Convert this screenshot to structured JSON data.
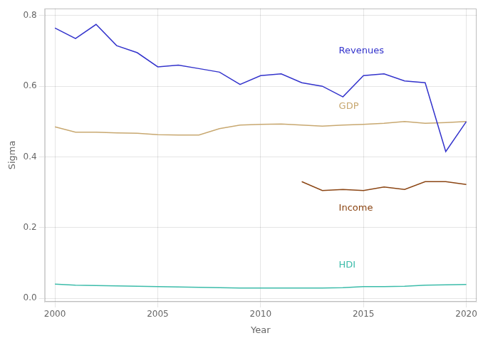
{
  "chart_data": {
    "type": "line",
    "xlabel": "Year",
    "ylabel": "Sigma",
    "xlim": [
      1999.5,
      2020.5
    ],
    "ylim": [
      -0.01,
      0.82
    ],
    "xticks": [
      2000,
      2005,
      2010,
      2015,
      2020
    ],
    "yticks": [
      {
        "value": 0.0,
        "label": "0.0"
      },
      0.2,
      0.4,
      0.6,
      0.8
    ],
    "grid": true,
    "series": [
      {
        "name": "Revenues",
        "color": "#3333cc",
        "x": [
          2000,
          2001,
          2002,
          2003,
          2004,
          2005,
          2006,
          2007,
          2008,
          2009,
          2010,
          2011,
          2012,
          2013,
          2014,
          2015,
          2016,
          2017,
          2018,
          2019,
          2020
        ],
        "values": [
          0.765,
          0.735,
          0.775,
          0.715,
          0.695,
          0.655,
          0.66,
          0.65,
          0.64,
          0.605,
          0.63,
          0.635,
          0.61,
          0.6,
          0.57,
          0.63,
          0.635,
          0.615,
          0.61,
          0.415,
          0.5
        ]
      },
      {
        "name": "GDP",
        "color": "#c8a870",
        "x": [
          2000,
          2001,
          2002,
          2003,
          2004,
          2005,
          2006,
          2007,
          2008,
          2009,
          2010,
          2011,
          2012,
          2013,
          2014,
          2015,
          2016,
          2017,
          2018,
          2019,
          2020
        ],
        "values": [
          0.485,
          0.47,
          0.47,
          0.468,
          0.467,
          0.463,
          0.462,
          0.462,
          0.48,
          0.49,
          0.492,
          0.493,
          0.49,
          0.487,
          0.49,
          0.492,
          0.495,
          0.5,
          0.495,
          0.497,
          0.5
        ]
      },
      {
        "name": "Income",
        "color": "#8B4513",
        "x": [
          2012,
          2013,
          2014,
          2015,
          2016,
          2017,
          2018,
          2019,
          2020
        ],
        "values": [
          0.33,
          0.305,
          0.308,
          0.305,
          0.315,
          0.308,
          0.33,
          0.33,
          0.322
        ]
      },
      {
        "name": "HDI",
        "color": "#3cbcaa",
        "x": [
          2000,
          2001,
          2002,
          2003,
          2004,
          2005,
          2006,
          2007,
          2008,
          2009,
          2010,
          2011,
          2012,
          2013,
          2014,
          2015,
          2016,
          2017,
          2018,
          2019,
          2020
        ],
        "values": [
          0.04,
          0.037,
          0.036,
          0.035,
          0.034,
          0.033,
          0.032,
          0.031,
          0.03,
          0.029,
          0.029,
          0.029,
          0.029,
          0.029,
          0.03,
          0.033,
          0.033,
          0.034,
          0.037,
          0.038,
          0.039
        ]
      }
    ],
    "annotations": [
      {
        "text": "Revenues",
        "x": 2013.8,
        "y": 0.7,
        "color": "#3333cc"
      },
      {
        "text": "GDP",
        "x": 2013.8,
        "y": 0.542,
        "color": "#c8a870"
      },
      {
        "text": "Income",
        "x": 2013.8,
        "y": 0.255,
        "color": "#8B4513"
      },
      {
        "text": "HDI",
        "x": 2013.8,
        "y": 0.093,
        "color": "#3cbcaa"
      }
    ]
  }
}
